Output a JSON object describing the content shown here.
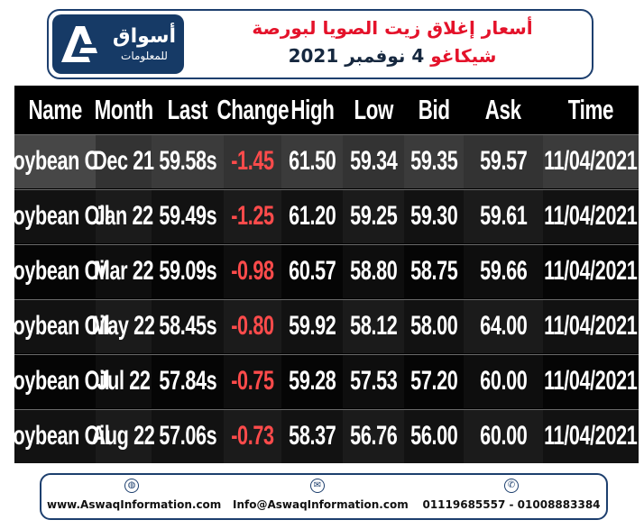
{
  "header": {
    "logo": {
      "name": "أسواق",
      "sub": "للمعلومات",
      "mark_icon": "aswaq-logo-icon"
    },
    "title_line1": "أسعار إغلاق زيت الصويا لبورصة",
    "title_line2_part1": "شيكاغو",
    "title_line2_part2": "4 نوفمبر 2021"
  },
  "table": {
    "columns": [
      "Name",
      "Month",
      "Last",
      "Change",
      "High",
      "Low",
      "Bid",
      "Ask",
      "Time"
    ],
    "rows": [
      [
        "Soybean Oil",
        "Dec 21",
        "59.58s",
        "-1.45",
        "61.50",
        "59.34",
        "59.35",
        "59.57",
        "11/04/2021"
      ],
      [
        "Soybean Oil",
        "Jan 22",
        "59.49s",
        "-1.25",
        "61.20",
        "59.25",
        "59.30",
        "59.61",
        "11/04/2021"
      ],
      [
        "Soybean Oil",
        "Mar 22",
        "59.09s",
        "-0.98",
        "60.57",
        "58.80",
        "58.75",
        "59.66",
        "11/04/2021"
      ],
      [
        "Soybean Oil",
        "May 22",
        "58.45s",
        "-0.80",
        "59.92",
        "58.12",
        "58.00",
        "64.00",
        "11/04/2021"
      ],
      [
        "Soybean Oil",
        "Jul 22",
        "57.84s",
        "-0.75",
        "59.28",
        "57.53",
        "57.20",
        "60.00",
        "11/04/2021"
      ],
      [
        "Soybean Oil",
        "Aug 22",
        "57.06s",
        "-0.73",
        "58.37",
        "56.76",
        "56.00",
        "60.00",
        "11/04/2021"
      ]
    ],
    "negative_color": "#ff4b4b"
  },
  "footer": {
    "website": {
      "icon": "globe-icon",
      "text": "www.AswaqInformation.com"
    },
    "email": {
      "icon": "envelope-icon",
      "text": "Info@AswaqInformation.com"
    },
    "phone": {
      "icon": "phone-icon",
      "text": "01119685557 - 01008883384"
    }
  },
  "colors": {
    "brand": "#163a66",
    "title_red": "#e4122a"
  }
}
